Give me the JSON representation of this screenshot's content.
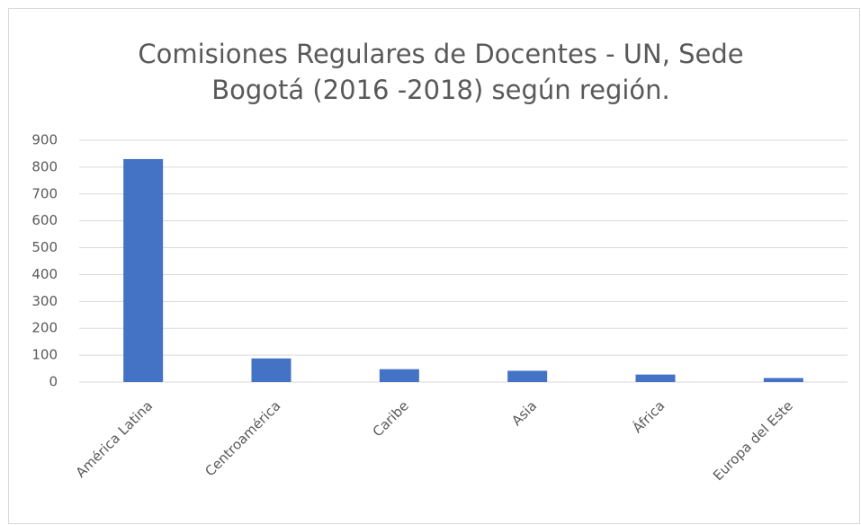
{
  "chart_data": {
    "type": "bar",
    "title": [
      "Comisiones Regulares de Docentes - UN, Sede",
      "Bogotá (2016 -2018) según región."
    ],
    "categories": [
      "América Latina",
      "Centroamérica",
      "Caribe",
      "Asia",
      "África",
      "Europa del Este"
    ],
    "values": [
      830,
      88,
      48,
      42,
      28,
      15
    ],
    "color": "#4472c4",
    "ylim": [
      0,
      900
    ],
    "yticks": [
      0,
      100,
      200,
      300,
      400,
      500,
      600,
      700,
      800,
      900
    ],
    "grid": true
  }
}
